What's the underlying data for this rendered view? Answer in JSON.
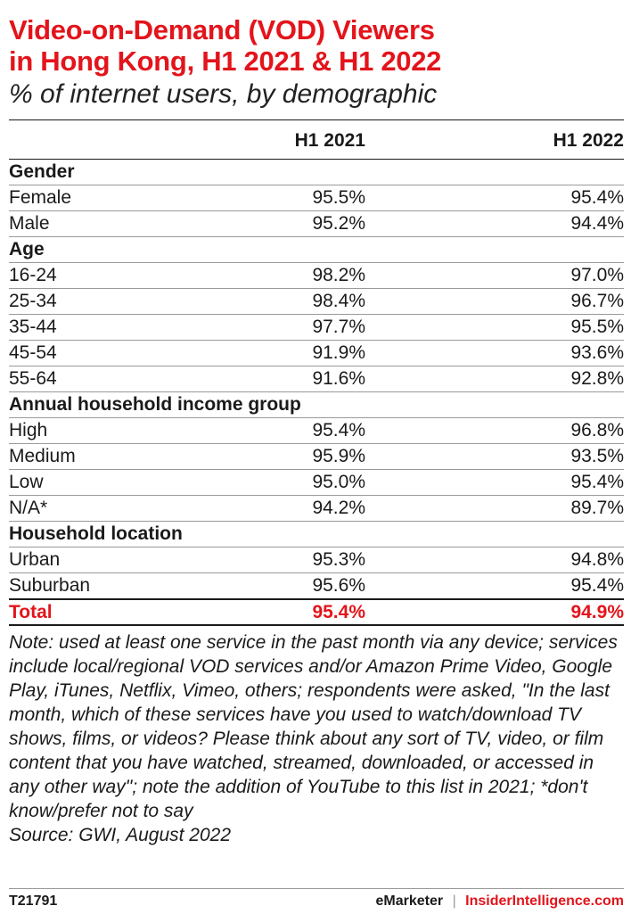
{
  "title_line1": "Video-on-Demand (VOD) Viewers",
  "title_line2": "in Hong Kong, H1 2021 & H1 2022",
  "subtitle": "% of internet users, by demographic",
  "columns": [
    "H1 2021",
    "H1 2022"
  ],
  "rows": [
    {
      "label": "Gender",
      "group": true
    },
    {
      "label": "Female",
      "v2021": "95.5%",
      "v2022": "95.4%"
    },
    {
      "label": "Male",
      "v2021": "95.2%",
      "v2022": "94.4%"
    },
    {
      "label": "Age",
      "group": true
    },
    {
      "label": "16-24",
      "v2021": "98.2%",
      "v2022": "97.0%"
    },
    {
      "label": "25-34",
      "v2021": "98.4%",
      "v2022": "96.7%"
    },
    {
      "label": "35-44",
      "v2021": "97.7%",
      "v2022": "95.5%"
    },
    {
      "label": "45-54",
      "v2021": "91.9%",
      "v2022": "93.6%"
    },
    {
      "label": "55-64",
      "v2021": "91.6%",
      "v2022": "92.8%"
    },
    {
      "label": "Annual household income group",
      "group": true
    },
    {
      "label": "High",
      "v2021": "95.4%",
      "v2022": "96.8%"
    },
    {
      "label": "Medium",
      "v2021": "95.9%",
      "v2022": "93.5%"
    },
    {
      "label": "Low",
      "v2021": "95.0%",
      "v2022": "95.4%"
    },
    {
      "label": "N/A*",
      "v2021": "94.2%",
      "v2022": "89.7%"
    },
    {
      "label": "Household location",
      "group": true
    },
    {
      "label": "Urban",
      "v2021": "95.3%",
      "v2022": "94.8%"
    },
    {
      "label": "Suburban",
      "v2021": "95.6%",
      "v2022": "95.4%"
    }
  ],
  "total": {
    "label": "Total",
    "v2021": "95.4%",
    "v2022": "94.9%"
  },
  "note": "Note: used at least one service in the past month via any device; services include local/regional VOD services and/or Amazon Prime Video, Google Play, iTunes, Netflix, Vimeo, others; respondents were asked, \"In the last month, which of these services have you used to watch/download TV shows, films, or videos? Please think about any sort of TV, video, or film content that you have watched, streamed, downloaded, or accessed in any other way\"; note the addition of YouTube to this list in 2021; *don't know/prefer not to say",
  "source": "Source: GWI, August 2022",
  "footer": {
    "chart_id": "T21791",
    "brand": "eMarketer",
    "separator": "|",
    "brand2": "InsiderIntelligence.com"
  },
  "colors": {
    "accent": "#e3141b",
    "text": "#1a1a1a",
    "rule": "#9a9a9a"
  },
  "chart_data": {
    "type": "table",
    "title": "Video-on-Demand (VOD) Viewers in Hong Kong, H1 2021 & H1 2022",
    "subtitle": "% of internet users, by demographic",
    "columns": [
      "H1 2021",
      "H1 2022"
    ],
    "groups": [
      {
        "name": "Gender",
        "rows": [
          {
            "label": "Female",
            "values": [
              95.5,
              95.4
            ]
          },
          {
            "label": "Male",
            "values": [
              95.2,
              94.4
            ]
          }
        ]
      },
      {
        "name": "Age",
        "rows": [
          {
            "label": "16-24",
            "values": [
              98.2,
              97.0
            ]
          },
          {
            "label": "25-34",
            "values": [
              98.4,
              96.7
            ]
          },
          {
            "label": "35-44",
            "values": [
              97.7,
              95.5
            ]
          },
          {
            "label": "45-54",
            "values": [
              91.9,
              93.6
            ]
          },
          {
            "label": "55-64",
            "values": [
              91.6,
              92.8
            ]
          }
        ]
      },
      {
        "name": "Annual household income group",
        "rows": [
          {
            "label": "High",
            "values": [
              95.4,
              96.8
            ]
          },
          {
            "label": "Medium",
            "values": [
              95.9,
              93.5
            ]
          },
          {
            "label": "Low",
            "values": [
              95.0,
              95.4
            ]
          },
          {
            "label": "N/A*",
            "values": [
              94.2,
              89.7
            ]
          }
        ]
      },
      {
        "name": "Household location",
        "rows": [
          {
            "label": "Urban",
            "values": [
              95.3,
              94.8
            ]
          },
          {
            "label": "Suburban",
            "values": [
              95.6,
              95.4
            ]
          }
        ]
      }
    ],
    "total": {
      "label": "Total",
      "values": [
        95.4,
        94.9
      ]
    }
  }
}
